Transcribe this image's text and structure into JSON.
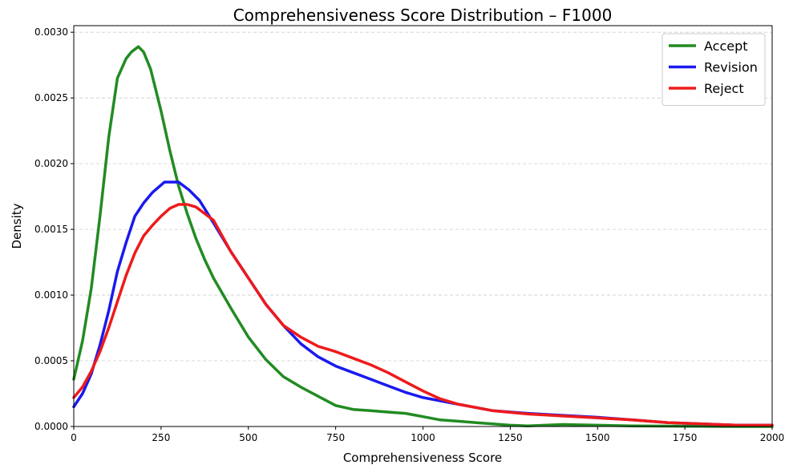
{
  "chart_data": {
    "type": "line",
    "title": "Comprehensiveness Score Distribution – F1000",
    "xlabel": "Comprehensiveness Score",
    "ylabel": "Density",
    "xlim": [
      0,
      2000
    ],
    "ylim": [
      0,
      0.00305
    ],
    "xticks": [
      0,
      250,
      500,
      750,
      1000,
      1250,
      1500,
      1750,
      2000
    ],
    "yticks": [
      0.0,
      0.0005,
      0.001,
      0.0015,
      0.002,
      0.0025,
      0.003
    ],
    "ytick_labels": [
      "0.0000",
      "0.0005",
      "0.0010",
      "0.0015",
      "0.0020",
      "0.0025",
      "0.0030"
    ],
    "grid": "y-dashed",
    "legend_position": "top-right",
    "series": [
      {
        "name": "Accept",
        "color": "#228b22",
        "x": [
          0,
          25,
          50,
          75,
          100,
          125,
          150,
          165,
          185,
          200,
          220,
          250,
          275,
          300,
          325,
          350,
          375,
          400,
          450,
          500,
          550,
          600,
          650,
          700,
          750,
          800,
          850,
          900,
          950,
          1000,
          1050,
          1100,
          1150,
          1200,
          1250,
          1300,
          1400,
          1500,
          1600,
          1700,
          1800,
          1900,
          2000
        ],
        "y": [
          0.00036,
          0.00065,
          0.00105,
          0.0016,
          0.0022,
          0.00265,
          0.0028,
          0.00285,
          0.00289,
          0.00285,
          0.00272,
          0.0024,
          0.0021,
          0.00183,
          0.00162,
          0.00143,
          0.00127,
          0.00113,
          0.0009,
          0.00068,
          0.00051,
          0.00038,
          0.0003,
          0.00023,
          0.00016,
          0.00013,
          0.00012,
          0.00011,
          0.0001,
          7.5e-05,
          5e-05,
          4e-05,
          3e-05,
          2e-05,
          1e-05,
          5e-06,
          1.5e-05,
          1e-05,
          5e-06,
          3e-06,
          1e-06,
          0.0,
          0.0
        ]
      },
      {
        "name": "Revision",
        "color": "#1a1aee",
        "x": [
          0,
          25,
          50,
          75,
          100,
          125,
          150,
          175,
          200,
          225,
          260,
          300,
          330,
          360,
          400,
          450,
          500,
          550,
          600,
          650,
          700,
          750,
          800,
          850,
          900,
          950,
          1000,
          1100,
          1200,
          1300,
          1400,
          1500,
          1600,
          1700,
          1800,
          1900,
          2000
        ],
        "y": [
          0.00015,
          0.00025,
          0.0004,
          0.00062,
          0.00088,
          0.00118,
          0.0014,
          0.0016,
          0.0017,
          0.00178,
          0.00186,
          0.00186,
          0.0018,
          0.00172,
          0.00155,
          0.00133,
          0.00113,
          0.00093,
          0.00077,
          0.00063,
          0.00053,
          0.00046,
          0.00041,
          0.00036,
          0.00031,
          0.00026,
          0.00022,
          0.00017,
          0.00012,
          0.0001,
          8.5e-05,
          7e-05,
          5e-05,
          3e-05,
          2e-05,
          1e-05,
          1e-05
        ]
      },
      {
        "name": "Reject",
        "color": "#ee1a1a",
        "x": [
          0,
          25,
          50,
          75,
          100,
          125,
          150,
          175,
          200,
          225,
          250,
          275,
          300,
          325,
          350,
          400,
          450,
          500,
          550,
          600,
          650,
          700,
          750,
          800,
          850,
          900,
          950,
          1000,
          1050,
          1100,
          1200,
          1300,
          1400,
          1500,
          1600,
          1700,
          1800,
          1900,
          2000
        ],
        "y": [
          0.00022,
          0.0003,
          0.00042,
          0.00057,
          0.00075,
          0.00095,
          0.00115,
          0.00132,
          0.00145,
          0.00153,
          0.0016,
          0.00166,
          0.00169,
          0.00169,
          0.00167,
          0.00157,
          0.00133,
          0.00113,
          0.00093,
          0.00077,
          0.00068,
          0.00061,
          0.00057,
          0.00052,
          0.00047,
          0.00041,
          0.00034,
          0.00027,
          0.00021,
          0.00017,
          0.00012,
          9.5e-05,
          8e-05,
          6.5e-05,
          5e-05,
          3e-05,
          2e-05,
          1e-05,
          1e-05
        ]
      }
    ]
  }
}
